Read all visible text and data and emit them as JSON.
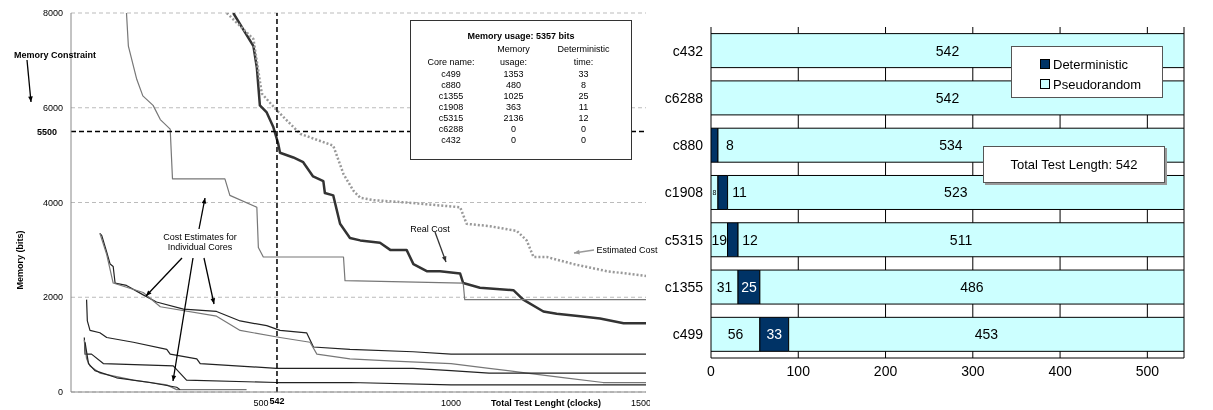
{
  "chart_data": [
    {
      "type": "line",
      "xlabel": "Total Test Lenght (clocks)",
      "ylabel": "Memory (bits)",
      "xlim": [
        0,
        1513
      ],
      "ylim": [
        0,
        8000
      ],
      "xticks": [
        500,
        1000,
        1500
      ],
      "yticks": [
        0,
        2000,
        4000,
        6000,
        8000
      ],
      "grid": "y",
      "ref_lines": [
        {
          "axis": "y",
          "value": 5500,
          "label": "5500",
          "line_style": "dashed"
        },
        {
          "axis": "x",
          "value": 542,
          "label": "542",
          "line_style": "dashed"
        }
      ],
      "annotations": [
        "Memory Constraint",
        "Cost Estimates for Individual Cores"
      ],
      "series": [
        {
          "name": "Real Cost",
          "color": "#333333",
          "line_style": "solid",
          "x": [
            427,
            480,
            489,
            497,
            515,
            532,
            545,
            550,
            585,
            611,
            637,
            664,
            668,
            690,
            708,
            734,
            761,
            813,
            840,
            883,
            901,
            936,
            971,
            1024,
            1032,
            1076,
            1164,
            1190,
            1243,
            1278,
            1340,
            1392,
            1454,
            1513
          ],
          "values": [
            8000,
            7300,
            6850,
            6050,
            5900,
            5600,
            5250,
            5050,
            4950,
            4850,
            4550,
            4450,
            4200,
            4150,
            3550,
            3250,
            3200,
            3150,
            3000,
            3000,
            2700,
            2550,
            2550,
            2500,
            2300,
            2200,
            2150,
            1950,
            1700,
            1650,
            1600,
            1550,
            1450,
            1450
          ]
        },
        {
          "name": "Estimated Cost",
          "color": "#999999",
          "line_style": "dotted",
          "x": [
            410,
            480,
            502,
            541,
            603,
            690,
            717,
            743,
            761,
            796,
            883,
            1024,
            1041,
            1102,
            1173,
            1199,
            1217,
            1252,
            1322,
            1410,
            1513
          ],
          "values": [
            8000,
            7450,
            6300,
            5950,
            5450,
            5200,
            4600,
            4250,
            4100,
            4050,
            4000,
            3900,
            3550,
            3500,
            3400,
            3200,
            2850,
            2850,
            2700,
            2550,
            2450
          ]
        },
        {
          "color": "#777777",
          "line_style": "solid",
          "x": [
            146,
            151,
            173,
            189,
            216,
            235,
            261,
            267,
            405,
            418,
            489,
            493,
            506,
            717,
            721,
            1032,
            1036,
            1513
          ],
          "values": [
            8000,
            7300,
            6600,
            6250,
            6050,
            5750,
            5550,
            4500,
            4500,
            4150,
            3900,
            3050,
            2850,
            2850,
            2350,
            2300,
            1950,
            1950
          ]
        },
        {
          "color": "#222222",
          "line_style": "solid",
          "x": [
            76,
            81,
            94,
            103,
            111,
            116,
            146,
            190,
            225,
            296,
            383,
            445,
            515,
            550,
            620,
            638,
            734,
            900,
            1000,
            1513
          ],
          "values": [
            3350,
            3300,
            2950,
            2700,
            2650,
            2300,
            2250,
            2050,
            1900,
            1750,
            1700,
            1500,
            1400,
            1300,
            1250,
            950,
            900,
            850,
            800,
            800
          ]
        },
        {
          "color": "#777777",
          "line_style": "solid",
          "x": [
            76,
            94,
            111,
            190,
            235,
            383,
            445,
            550,
            629,
            647,
            734,
            850,
            1000,
            1100,
            1200,
            1300,
            1400,
            1513
          ],
          "values": [
            3350,
            2900,
            2300,
            2100,
            1800,
            1600,
            1300,
            1150,
            1050,
            800,
            700,
            650,
            600,
            500,
            400,
            300,
            200,
            200
          ]
        },
        {
          "color": "#222222",
          "line_style": "solid",
          "x": [
            41,
            43,
            50,
            76,
            94,
            164,
            252,
            261,
            331,
            340,
            541,
            734,
            900,
            1000,
            1100,
            1513
          ],
          "values": [
            1950,
            1500,
            1300,
            1250,
            1150,
            1050,
            900,
            800,
            700,
            600,
            500,
            500,
            500,
            450,
            400,
            400
          ]
        },
        {
          "color": "#222222",
          "line_style": "solid",
          "x": [
            35,
            37,
            54,
            85,
            269,
            304,
            541,
            734,
            1000,
            1200,
            1513
          ],
          "values": [
            1150,
            800,
            800,
            600,
            550,
            250,
            200,
            200,
            150,
            150,
            150
          ]
        },
        {
          "color": "#777777",
          "line_style": "solid",
          "x": [
            35,
            41,
            50,
            76,
            164,
            252,
            278,
            462
          ],
          "values": [
            1100,
            700,
            550,
            400,
            250,
            150,
            50,
            50
          ]
        },
        {
          "color": "#222222",
          "line_style": "solid",
          "x": [
            37,
            46,
            63,
            120,
            208,
            278,
            287
          ],
          "values": [
            1050,
            600,
            450,
            300,
            200,
            100,
            50
          ]
        }
      ]
    },
    {
      "type": "other",
      "title": "Memory usage: 5357 bits",
      "xlabel": "Core name:",
      "categories": [
        "c499",
        "c880",
        "c1355",
        "c1908",
        "c5315",
        "c6288",
        "c432"
      ],
      "data_labels": true,
      "series": [
        {
          "name": "Memory usage:",
          "values": [
            1353,
            480,
            1025,
            363,
            2136,
            0,
            0
          ]
        },
        {
          "name": "Deterministic time:",
          "values": [
            33,
            8,
            25,
            11,
            12,
            0,
            0
          ]
        }
      ]
    },
    {
      "type": "bar",
      "orientation": "horizontal",
      "stacked": true,
      "categories": [
        "c432",
        "c6288",
        "c880",
        "c1908",
        "c5315",
        "c1355",
        "c499"
      ],
      "xlim": [
        0,
        542
      ],
      "xticks": [
        0,
        100,
        200,
        300,
        400,
        500
      ],
      "grid": "x",
      "legend": "top right",
      "annotations": [
        "Total Test Length: 542"
      ],
      "series": [
        {
          "color": "#ccffff",
          "values": [
            0,
            0,
            0,
            8,
            19,
            31,
            56
          ],
          "value_labels": [
            null,
            null,
            null,
            "8",
            "19",
            "31",
            "56"
          ]
        },
        {
          "name": "Deterministic",
          "color": "#003366",
          "values": [
            0,
            0,
            8,
            11,
            12,
            25,
            33
          ],
          "value_labels": [
            null,
            null,
            "8",
            "11",
            "12",
            "25",
            "33"
          ]
        },
        {
          "name": "Pseudorandom",
          "color": "#ccffff",
          "values": [
            542,
            542,
            534,
            523,
            511,
            486,
            453
          ],
          "value_labels": [
            "542",
            "542",
            "534",
            "523",
            "511",
            "486",
            "453"
          ]
        }
      ]
    }
  ]
}
